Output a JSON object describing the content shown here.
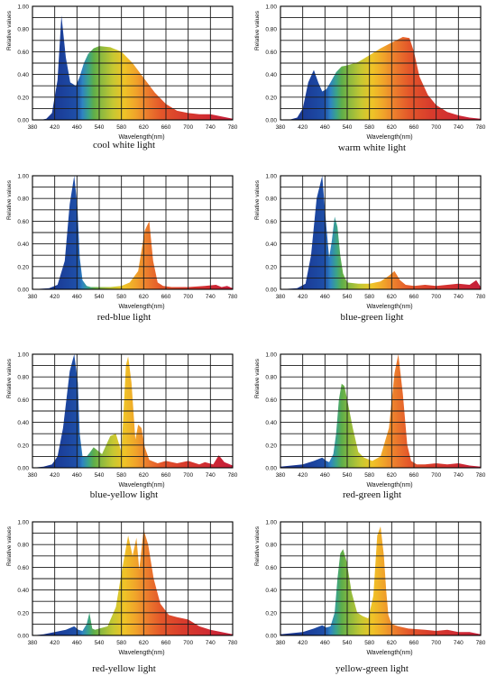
{
  "y_axis_label": "Relative values",
  "x_axis_label": "Wavelength(nm)",
  "chart_data": [
    {
      "type": "area",
      "title": "cool white light",
      "xlabel": "Wavelength(nm)",
      "ylabel": "Relative values",
      "xlim": [
        380,
        780
      ],
      "ylim": [
        0,
        1
      ],
      "x_ticks": [
        380,
        420,
        460,
        540,
        580,
        620,
        660,
        700,
        740,
        780
      ],
      "y_ticks": [
        "0.00",
        "0.20",
        "0.40",
        "0.60",
        "0.80",
        "1.00"
      ],
      "grid": true,
      "x": [
        380,
        395,
        405,
        415,
        425,
        432,
        440,
        448,
        458,
        470,
        485,
        500,
        520,
        540,
        560,
        580,
        600,
        620,
        640,
        660,
        680,
        700,
        720,
        740,
        760,
        780
      ],
      "y": [
        0,
        0,
        0.01,
        0.06,
        0.35,
        0.92,
        0.55,
        0.33,
        0.3,
        0.38,
        0.5,
        0.58,
        0.63,
        0.65,
        0.64,
        0.6,
        0.5,
        0.37,
        0.24,
        0.14,
        0.08,
        0.06,
        0.05,
        0.05,
        0.03,
        0.01
      ]
    },
    {
      "type": "area",
      "title": "warm white light",
      "xlabel": "Wavelength(nm)",
      "ylabel": "Relative values",
      "xlim": [
        380,
        780
      ],
      "ylim": [
        0,
        1
      ],
      "x_ticks": [
        380,
        420,
        460,
        540,
        580,
        620,
        660,
        700,
        740,
        780
      ],
      "y_ticks": [
        "0.00",
        "0.20",
        "0.40",
        "0.60",
        "0.80",
        "1.00"
      ],
      "grid": true,
      "x": [
        380,
        395,
        410,
        420,
        430,
        440,
        448,
        455,
        465,
        480,
        500,
        520,
        540,
        560,
        580,
        600,
        620,
        640,
        652,
        660,
        670,
        685,
        700,
        720,
        740,
        760,
        780
      ],
      "y": [
        0,
        0,
        0.02,
        0.1,
        0.33,
        0.44,
        0.33,
        0.25,
        0.27,
        0.33,
        0.42,
        0.47,
        0.48,
        0.51,
        0.57,
        0.63,
        0.68,
        0.73,
        0.72,
        0.6,
        0.38,
        0.22,
        0.13,
        0.07,
        0.04,
        0.02,
        0.01
      ]
    },
    {
      "type": "area",
      "title": "red-blue light",
      "xlabel": "Wavelength(nm)",
      "ylabel": "Relative values",
      "xlim": [
        380,
        780
      ],
      "ylim": [
        0,
        1
      ],
      "x_ticks": [
        380,
        420,
        460,
        540,
        580,
        620,
        660,
        700,
        740,
        780
      ],
      "y_ticks": [
        "0.00",
        "0.20",
        "0.40",
        "0.60",
        "0.80",
        "1.00"
      ],
      "grid": true,
      "x": [
        380,
        410,
        425,
        438,
        447,
        455,
        462,
        470,
        480,
        495,
        510,
        530,
        560,
        580,
        595,
        610,
        622,
        630,
        637,
        645,
        655,
        670,
        700,
        730,
        750,
        760,
        770,
        780
      ],
      "y": [
        0,
        0.01,
        0.04,
        0.25,
        0.75,
        1,
        0.72,
        0.28,
        0.08,
        0.03,
        0.02,
        0.02,
        0.02,
        0.03,
        0.06,
        0.16,
        0.52,
        0.6,
        0.25,
        0.06,
        0.03,
        0.02,
        0.02,
        0.03,
        0.04,
        0.02,
        0.03,
        0.01
      ]
    },
    {
      "type": "area",
      "title": "blue-green light",
      "xlabel": "Wavelength(nm)",
      "ylabel": "Relative values",
      "xlim": [
        380,
        780
      ],
      "ylim": [
        0,
        1
      ],
      "x_ticks": [
        380,
        420,
        460,
        540,
        580,
        620,
        660,
        700,
        740,
        780
      ],
      "y_ticks": [
        "0.00",
        "0.20",
        "0.40",
        "0.60",
        "0.80",
        "1.00"
      ],
      "grid": true,
      "x": [
        380,
        410,
        425,
        435,
        445,
        455,
        465,
        475,
        485,
        495,
        505,
        515,
        525,
        540,
        560,
        580,
        600,
        615,
        625,
        635,
        645,
        660,
        680,
        700,
        720,
        740,
        760,
        772,
        780
      ],
      "y": [
        0,
        0.01,
        0.05,
        0.3,
        0.8,
        1,
        0.55,
        0.28,
        0.43,
        0.64,
        0.55,
        0.3,
        0.14,
        0.06,
        0.05,
        0.05,
        0.07,
        0.12,
        0.16,
        0.08,
        0.04,
        0.03,
        0.04,
        0.03,
        0.04,
        0.05,
        0.04,
        0.08,
        0.02
      ]
    },
    {
      "type": "area",
      "title": "blue-yellow light",
      "xlabel": "Wavelength(nm)",
      "ylabel": "Relative values",
      "xlim": [
        380,
        780
      ],
      "ylim": [
        0,
        1
      ],
      "x_ticks": [
        380,
        420,
        460,
        540,
        580,
        620,
        660,
        700,
        740,
        780
      ],
      "y_ticks": [
        "0.00",
        "0.20",
        "0.40",
        "0.60",
        "0.80",
        "1.00"
      ],
      "grid": true,
      "x": [
        380,
        400,
        415,
        425,
        435,
        447,
        455,
        463,
        470,
        480,
        495,
        505,
        520,
        530,
        545,
        560,
        570,
        580,
        588,
        592,
        598,
        605,
        610,
        616,
        622,
        630,
        645,
        660,
        680,
        700,
        720,
        730,
        745,
        755,
        765,
        780
      ],
      "y": [
        0,
        0.01,
        0.03,
        0.1,
        0.35,
        0.85,
        1,
        0.75,
        0.3,
        0.1,
        0.1,
        0.13,
        0.18,
        0.16,
        0.12,
        0.28,
        0.3,
        0.14,
        0.9,
        0.98,
        0.75,
        0.25,
        0.38,
        0.35,
        0.18,
        0.07,
        0.04,
        0.06,
        0.04,
        0.06,
        0.03,
        0.05,
        0.03,
        0.11,
        0.05,
        0.02
      ]
    },
    {
      "type": "area",
      "title": "red-green light",
      "xlabel": "Wavelength(nm)",
      "ylabel": "Relative values",
      "xlim": [
        380,
        780
      ],
      "ylim": [
        0,
        1
      ],
      "x_ticks": [
        380,
        420,
        460,
        540,
        580,
        620,
        660,
        700,
        740,
        780
      ],
      "y_ticks": [
        "0.00",
        "0.20",
        "0.40",
        "0.60",
        "0.80",
        "1.00"
      ],
      "grid": true,
      "x": [
        380,
        420,
        440,
        455,
        465,
        475,
        490,
        500,
        510,
        520,
        530,
        540,
        550,
        560,
        570,
        585,
        600,
        615,
        625,
        632,
        640,
        648,
        655,
        665,
        680,
        700,
        720,
        740,
        760,
        780
      ],
      "y": [
        0.01,
        0.03,
        0.06,
        0.09,
        0.06,
        0.05,
        0.12,
        0.3,
        0.6,
        0.74,
        0.72,
        0.6,
        0.35,
        0.14,
        0.09,
        0.06,
        0.1,
        0.35,
        0.83,
        1,
        0.65,
        0.2,
        0.06,
        0.03,
        0.03,
        0.04,
        0.03,
        0.04,
        0.02,
        0.01
      ]
    },
    {
      "type": "area",
      "title": "red-yellow light",
      "xlabel": "Wavelength(nm)",
      "ylabel": "Relative values",
      "xlim": [
        380,
        780
      ],
      "ylim": [
        0,
        1
      ],
      "x_ticks": [
        380,
        420,
        460,
        540,
        580,
        620,
        660,
        700,
        740,
        780
      ],
      "y_ticks": [
        "0.00",
        "0.20",
        "0.40",
        "0.60",
        "0.80",
        "1.00"
      ],
      "grid": true,
      "x": [
        380,
        400,
        420,
        440,
        455,
        465,
        480,
        495,
        505,
        515,
        525,
        540,
        555,
        570,
        580,
        592,
        600,
        607,
        612,
        620,
        628,
        638,
        650,
        665,
        680,
        700,
        720,
        740,
        760,
        780
      ],
      "y": [
        0,
        0.01,
        0.03,
        0.05,
        0.08,
        0.05,
        0.04,
        0.1,
        0.2,
        0.06,
        0.05,
        0.06,
        0.08,
        0.25,
        0.55,
        0.88,
        0.7,
        0.86,
        0.58,
        0.93,
        0.8,
        0.5,
        0.28,
        0.18,
        0.16,
        0.14,
        0.08,
        0.05,
        0.03,
        0.01
      ]
    },
    {
      "type": "area",
      "title": "yellow-green light",
      "xlabel": "Wavelength(nm)",
      "ylabel": "Relative values",
      "xlim": [
        380,
        780
      ],
      "ylim": [
        0,
        1
      ],
      "x_ticks": [
        380,
        420,
        460,
        540,
        580,
        620,
        660,
        700,
        740,
        780
      ],
      "y_ticks": [
        "0.00",
        "0.20",
        "0.40",
        "0.60",
        "0.80",
        "1.00"
      ],
      "grid": true,
      "x": [
        380,
        420,
        440,
        455,
        465,
        480,
        495,
        505,
        515,
        525,
        538,
        548,
        558,
        568,
        578,
        587,
        594,
        600,
        606,
        610,
        614,
        620,
        632,
        650,
        680,
        700,
        720,
        740,
        760,
        780
      ],
      "y": [
        0.01,
        0.03,
        0.06,
        0.09,
        0.07,
        0.08,
        0.2,
        0.5,
        0.72,
        0.76,
        0.65,
        0.38,
        0.2,
        0.17,
        0.15,
        0.35,
        0.88,
        0.96,
        0.7,
        0.4,
        0.18,
        0.1,
        0.08,
        0.06,
        0.05,
        0.04,
        0.05,
        0.03,
        0.03,
        0.01
      ]
    }
  ]
}
